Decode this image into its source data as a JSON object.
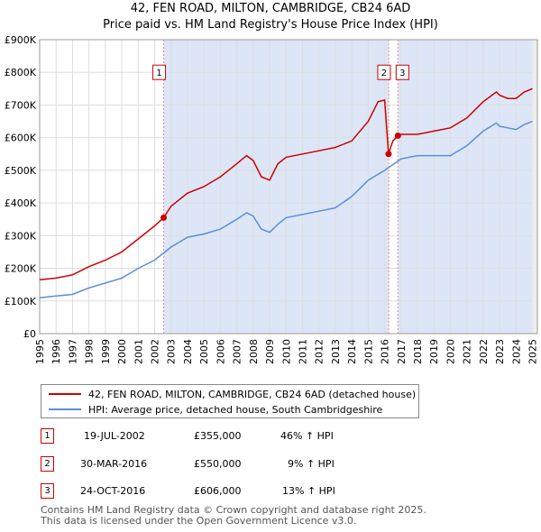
{
  "chart_data": {
    "type": "line",
    "title": "42, FEN ROAD, MILTON, CAMBRIDGE, CB24 6AD",
    "subtitle": "Price paid vs. HM Land Registry's House Price Index (HPI)",
    "xlabel": "",
    "ylabel": "",
    "xlim": [
      1995,
      2025.3
    ],
    "ylim": [
      0,
      900000
    ],
    "x_ticks": [
      "1995",
      "1996",
      "1997",
      "1998",
      "1999",
      "2000",
      "2001",
      "2002",
      "2003",
      "2004",
      "2005",
      "2006",
      "2007",
      "2008",
      "2009",
      "2010",
      "2011",
      "2012",
      "2013",
      "2014",
      "2015",
      "2016",
      "2017",
      "2018",
      "2019",
      "2020",
      "2021",
      "2022",
      "2023",
      "2024",
      "2025"
    ],
    "y_ticks": [
      {
        "value": 0,
        "label": "£0"
      },
      {
        "value": 100000,
        "label": "£100K"
      },
      {
        "value": 200000,
        "label": "£200K"
      },
      {
        "value": 300000,
        "label": "£300K"
      },
      {
        "value": 400000,
        "label": "£400K"
      },
      {
        "value": 500000,
        "label": "£500K"
      },
      {
        "value": 600000,
        "label": "£600K"
      },
      {
        "value": 700000,
        "label": "£700K"
      },
      {
        "value": 800000,
        "label": "£800K"
      },
      {
        "value": 900000,
        "label": "£900K"
      }
    ],
    "grid": true,
    "series": [
      {
        "name": "42, FEN ROAD, MILTON, CAMBRIDGE, CB24 6AD (detached house)",
        "color": "#cc0000",
        "x": [
          1995,
          1996,
          1997,
          1998,
          1999,
          2000,
          2001,
          2002,
          2002.55,
          2003,
          2004,
          2005,
          2006,
          2007,
          2007.6,
          2008,
          2008.5,
          2009,
          2009.5,
          2010,
          2011,
          2012,
          2013,
          2014,
          2015,
          2015.6,
          2016,
          2016.24,
          2016.5,
          2016.81,
          2017,
          2018,
          2019,
          2020,
          2021,
          2022,
          2022.8,
          2023,
          2023.5,
          2024,
          2024.5,
          2025
        ],
        "y": [
          165000,
          170000,
          180000,
          205000,
          225000,
          250000,
          290000,
          330000,
          355000,
          390000,
          430000,
          450000,
          480000,
          520000,
          545000,
          530000,
          480000,
          470000,
          520000,
          540000,
          550000,
          560000,
          570000,
          590000,
          650000,
          710000,
          715000,
          550000,
          590000,
          606000,
          610000,
          610000,
          620000,
          630000,
          660000,
          710000,
          740000,
          730000,
          720000,
          720000,
          740000,
          750000
        ]
      },
      {
        "name": "HPI: Average price, detached house, South Cambridgeshire",
        "color": "#5b8ed6",
        "x": [
          1995,
          1996,
          1997,
          1998,
          1999,
          2000,
          2001,
          2002,
          2003,
          2004,
          2005,
          2006,
          2007,
          2007.6,
          2008,
          2008.5,
          2009,
          2009.5,
          2010,
          2011,
          2012,
          2013,
          2014,
          2015,
          2016,
          2017,
          2018,
          2019,
          2020,
          2021,
          2022,
          2022.8,
          2023,
          2023.5,
          2024,
          2024.5,
          2025
        ],
        "y": [
          110000,
          115000,
          120000,
          140000,
          155000,
          170000,
          200000,
          225000,
          265000,
          295000,
          305000,
          320000,
          350000,
          370000,
          360000,
          320000,
          310000,
          335000,
          355000,
          365000,
          375000,
          385000,
          420000,
          470000,
          500000,
          535000,
          545000,
          545000,
          545000,
          575000,
          620000,
          645000,
          635000,
          630000,
          625000,
          640000,
          650000
        ]
      }
    ],
    "transactions": [
      {
        "num": "1",
        "date": "19-JUL-2002",
        "x": 2002.55,
        "price": 355000,
        "price_label": "£355,000",
        "hpi": "46% ↑ HPI"
      },
      {
        "num": "2",
        "date": "30-MAR-2016",
        "x": 2016.24,
        "price": 550000,
        "price_label": "£550,000",
        "hpi": "9% ↑ HPI"
      },
      {
        "num": "3",
        "date": "24-OCT-2016",
        "x": 2016.81,
        "price": 606000,
        "price_label": "£606,000",
        "hpi": "13% ↑ HPI"
      }
    ]
  },
  "colors": {
    "price_line": "#cc0000",
    "hpi_line": "#5b8ed6",
    "shade": "#dde6f7",
    "grid": "#dddddd",
    "marker_border": "#cc0000"
  },
  "footer": {
    "line1": "Contains HM Land Registry data © Crown copyright and database right 2025.",
    "line2": "This data is licensed under the Open Government Licence v3.0."
  }
}
